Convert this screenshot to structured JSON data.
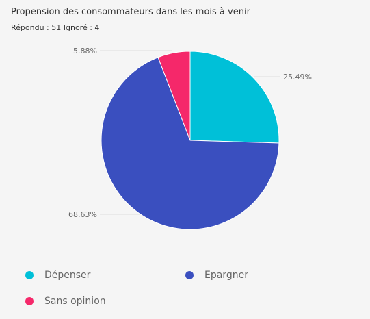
{
  "header": {
    "title": "Propension des consommateurs dans les mois à venir",
    "responses": "Répondu : 51 Ignoré : 4"
  },
  "chart_data": {
    "type": "pie",
    "title": "Propension des consommateurs dans les mois à venir",
    "slices": [
      {
        "label": "Dépenser",
        "value": 25.49,
        "display": "25.49%",
        "color": "#00c0d8"
      },
      {
        "label": "Epargner",
        "value": 68.63,
        "display": "68.63%",
        "color": "#3a4fbf"
      },
      {
        "label": "Sans opinion",
        "value": 5.88,
        "display": "5.88%",
        "color": "#f5286a"
      }
    ],
    "legend_position": "bottom"
  }
}
